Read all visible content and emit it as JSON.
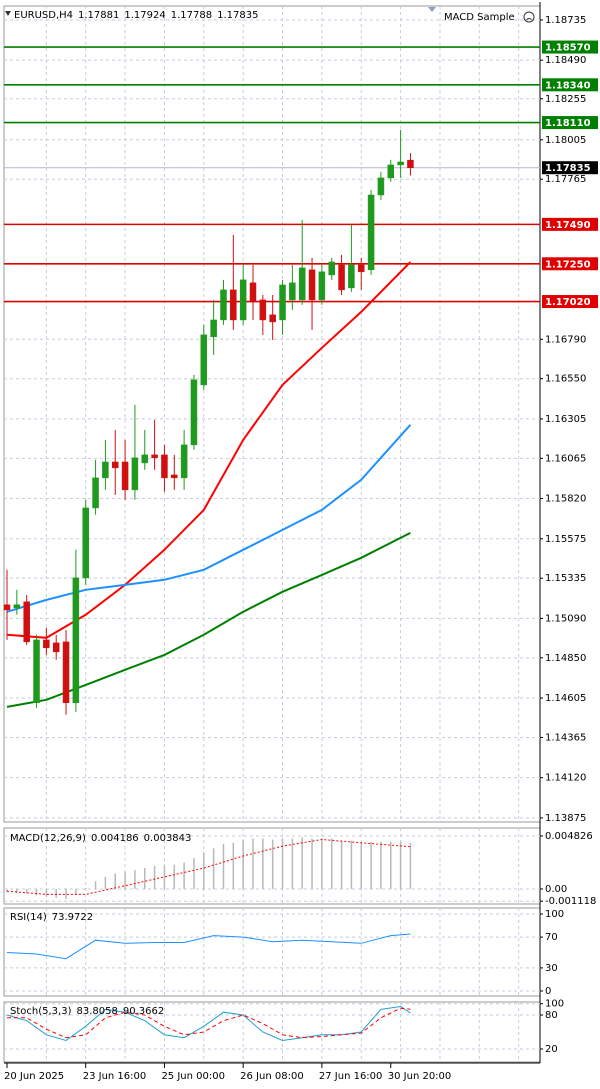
{
  "chart_data": [
    {
      "type": "candlestick",
      "title": "EURUSD,H4",
      "header_values": [
        1.17881,
        1.17924,
        1.17788,
        1.17835
      ],
      "expert": "MACD Sample",
      "categories": [
        "20 Jun 2025",
        null,
        null,
        null,
        null,
        null,
        null,
        null,
        "23 Jun 16:00",
        null,
        null,
        null,
        null,
        null,
        null,
        null,
        "25 Jun 00:00",
        null,
        null,
        null,
        null,
        null,
        null,
        null,
        "26 Jun 08:00",
        null,
        null,
        null,
        null,
        null,
        null,
        null,
        "27 Jun 16:00",
        null,
        null,
        null,
        null,
        null,
        null,
        "30 Jun 20:00",
        null,
        null
      ],
      "open": [
        1.15173,
        1.15154,
        1.15191,
        1.14576,
        1.14959,
        1.14941,
        1.14947,
        1.14576,
        1.15337,
        1.15763,
        1.15946,
        1.16043,
        1.16043,
        1.15873,
        1.16037,
        1.16086,
        1.16086,
        1.15964,
        1.15946,
        1.16147,
        1.16512,
        1.16805,
        1.16908,
        1.17091,
        1.16908,
        1.17134,
        1.1703,
        1.16939,
        1.16908,
        1.1703,
        1.1703,
        1.17213,
        1.1703,
        1.17182,
        1.17243,
        1.17103,
        1.17243,
        1.17213,
        1.17669,
        1.17773,
        1.17852,
        1.17881
      ],
      "high": [
        1.15386,
        1.15264,
        1.15233,
        1.1499,
        1.15033,
        1.1499,
        1.1502,
        1.15508,
        1.15812,
        1.16056,
        1.16177,
        1.16238,
        1.16177,
        1.16391,
        1.16238,
        1.16299,
        1.16147,
        1.16086,
        1.16238,
        1.16573,
        1.16878,
        1.1703,
        1.17152,
        1.17426,
        1.17243,
        1.17243,
        1.1706,
        1.1706,
        1.17152,
        1.17243,
        1.17517,
        1.17286,
        1.17243,
        1.17286,
        1.17304,
        1.17487,
        1.17286,
        1.177,
        1.1781,
        1.17883,
        1.18065,
        1.17924
      ],
      "low": [
        1.14959,
        1.15112,
        1.14929,
        1.14545,
        1.14868,
        1.14838,
        1.14503,
        1.14521,
        1.15294,
        1.15721,
        1.15873,
        1.15842,
        1.15812,
        1.15812,
        1.15995,
        1.15995,
        1.15861,
        1.15873,
        1.15873,
        1.16117,
        1.16482,
        1.16695,
        1.16878,
        1.16847,
        1.16878,
        1.16908,
        1.16817,
        1.16786,
        1.16817,
        1.16969,
        1.17,
        1.16847,
        1.17,
        1.17152,
        1.1706,
        1.17079,
        1.17091,
        1.17182,
        1.17639,
        1.17749,
        1.17773,
        1.17788
      ],
      "close": [
        1.15142,
        1.15173,
        1.14947,
        1.14959,
        1.14911,
        1.14886,
        1.14576,
        1.15337,
        1.15763,
        1.15946,
        1.16043,
        1.16007,
        1.15873,
        1.16068,
        1.16086,
        1.16068,
        1.15946,
        1.15946,
        1.16147,
        1.16543,
        1.16817,
        1.16908,
        1.17091,
        1.16908,
        1.17152,
        1.17018,
        1.16908,
        1.16896,
        1.17121,
        1.17134,
        1.17225,
        1.1703,
        1.17201,
        1.17261,
        1.17091,
        1.17243,
        1.17201,
        1.17669,
        1.17773,
        1.17852,
        1.1787,
        1.17835
      ],
      "up_color": "#1f9a1f",
      "down_color": "#d01010",
      "lines": [
        {
          "color": "#ff0000",
          "x": [
            0,
            4,
            8,
            12,
            16,
            20,
            24,
            28,
            32,
            36,
            41
          ],
          "values": [
            1.1499,
            1.14972,
            1.15112,
            1.15294,
            1.15508,
            1.15751,
            1.16177,
            1.16512,
            1.16738,
            1.16957,
            1.17261
          ]
        },
        {
          "color": "#1e90ff",
          "x": [
            0,
            4,
            8,
            12,
            16,
            20,
            24,
            28,
            32,
            36,
            41
          ],
          "values": [
            1.1513,
            1.15203,
            1.15264,
            1.15294,
            1.15325,
            1.15386,
            1.15508,
            1.15629,
            1.15751,
            1.15934,
            1.16269
          ]
        },
        {
          "color": "#008000",
          "x": [
            0,
            4,
            8,
            12,
            16,
            20,
            24,
            28,
            32,
            36,
            41
          ],
          "values": [
            1.14551,
            1.14594,
            1.14685,
            1.14777,
            1.14868,
            1.1499,
            1.1513,
            1.15252,
            1.15355,
            1.15459,
            1.15611
          ]
        }
      ],
      "ylim": [
        1.1385,
        1.1882
      ],
      "yticks": [
        1.18735,
        {
          "value": 1.1849,
          "label": "1.18490"
        },
        1.18255,
        1.18005,
        1.17765,
        {
          "value": 1.1679,
          "label": "1.16790"
        },
        {
          "value": 1.1655,
          "label": "1.16550"
        },
        1.16305,
        1.16065,
        {
          "value": 1.1582,
          "label": "1.15820"
        },
        1.15575,
        1.15335,
        {
          "value": 1.1509,
          "label": "1.15090"
        },
        {
          "value": 1.1485,
          "label": "1.14850"
        },
        1.14605,
        1.14365,
        {
          "value": 1.1412,
          "label": "1.14120"
        },
        1.13875
      ],
      "levels": [
        {
          "value": 1.1857,
          "label": "1.18570",
          "color": "#008000"
        },
        {
          "value": 1.1834,
          "label": "1.18340",
          "color": "#008000"
        },
        {
          "value": 1.1811,
          "label": "1.18110",
          "color": "#008000"
        },
        {
          "value": 1.1749,
          "label": "1.17490",
          "color": "#e00000"
        },
        {
          "value": 1.1725,
          "label": "1.17250",
          "color": "#e00000"
        },
        {
          "value": 1.1702,
          "label": "1.17020",
          "color": "#e00000"
        }
      ],
      "current_price": 1.17835,
      "grid": true
    },
    {
      "type": "macd",
      "title": "MACD(12,26,9)",
      "header_values": [
        0.004186,
        0.003843
      ],
      "values": [
        -0.0003,
        -0.0004,
        -0.0004,
        -0.0006,
        -0.0007,
        -0.0008,
        -0.0009,
        -0.0005,
        0.0001,
        0.0007,
        0.0011,
        0.0014,
        0.0015,
        0.0017,
        0.0019,
        0.0021,
        0.0021,
        0.0022,
        0.0024,
        0.0028,
        0.0033,
        0.0037,
        0.0041,
        0.0042,
        0.0045,
        0.0046,
        0.0046,
        0.0045,
        0.0046,
        0.0046,
        0.0047,
        0.0046,
        0.0046,
        0.0046,
        0.0044,
        0.0044,
        0.0042,
        0.0043,
        0.0043,
        0.0043,
        0.0043,
        0.004186
      ],
      "color": "#b8b8b8",
      "signal": {
        "color": "#ff0000",
        "line_style": "dotted",
        "x": [
          0,
          4,
          8,
          12,
          16,
          20,
          24,
          28,
          32,
          36,
          41
        ],
        "values": [
          -0.0002,
          -0.0005,
          -0.0005,
          0.0003,
          0.0011,
          0.0019,
          0.003,
          0.0039,
          0.0045,
          0.0042,
          0.003843
        ]
      },
      "ylim": [
        -0.00137,
        0.00555
      ],
      "yticks": [
        0.004826,
        {
          "value": 0,
          "label": "0.00"
        },
        -0.001118
      ],
      "grid": true
    },
    {
      "type": "line",
      "title": "RSI(14)",
      "header_values": [
        73.9722
      ],
      "series": [
        {
          "color": "#1e90ff",
          "line_style": "solid",
          "x": [
            0,
            3,
            6,
            9,
            12,
            15,
            18,
            21,
            24,
            27,
            30,
            33,
            36,
            39,
            41
          ],
          "values": [
            50,
            48,
            42,
            66,
            62,
            63,
            63,
            72,
            70,
            64,
            66,
            64,
            62,
            72,
            73.9722
          ]
        }
      ],
      "ylim": [
        -6.5,
        107.8
      ],
      "yticks": [
        100,
        70,
        30,
        0
      ],
      "grid": true
    },
    {
      "type": "line",
      "title": "Stoch(5,3,3)",
      "header_values": [
        83.8058,
        90.3662
      ],
      "series": [
        {
          "color": "#20a0d0",
          "line_style": "solid",
          "x": [
            0,
            2,
            4,
            6,
            8,
            10,
            12,
            14,
            16,
            18,
            20,
            22,
            24,
            26,
            28,
            30,
            32,
            34,
            36,
            38,
            40,
            41
          ],
          "values": [
            80,
            70,
            45,
            35,
            60,
            90,
            85,
            70,
            45,
            40,
            60,
            85,
            80,
            50,
            35,
            40,
            45,
            45,
            50,
            90,
            95,
            83.8058
          ]
        },
        {
          "color": "#ff0000",
          "line_style": "dashed",
          "x": [
            0,
            2,
            4,
            6,
            8,
            10,
            12,
            14,
            16,
            18,
            20,
            22,
            24,
            26,
            28,
            30,
            32,
            34,
            36,
            38,
            40,
            41
          ],
          "values": [
            75,
            75,
            55,
            40,
            45,
            75,
            85,
            80,
            60,
            45,
            50,
            70,
            80,
            65,
            45,
            40,
            42,
            45,
            48,
            75,
            92,
            90.3662
          ]
        }
      ],
      "ylim": [
        -3,
        103
      ],
      "yticks": [
        100,
        80,
        20
      ],
      "grid": true
    }
  ]
}
